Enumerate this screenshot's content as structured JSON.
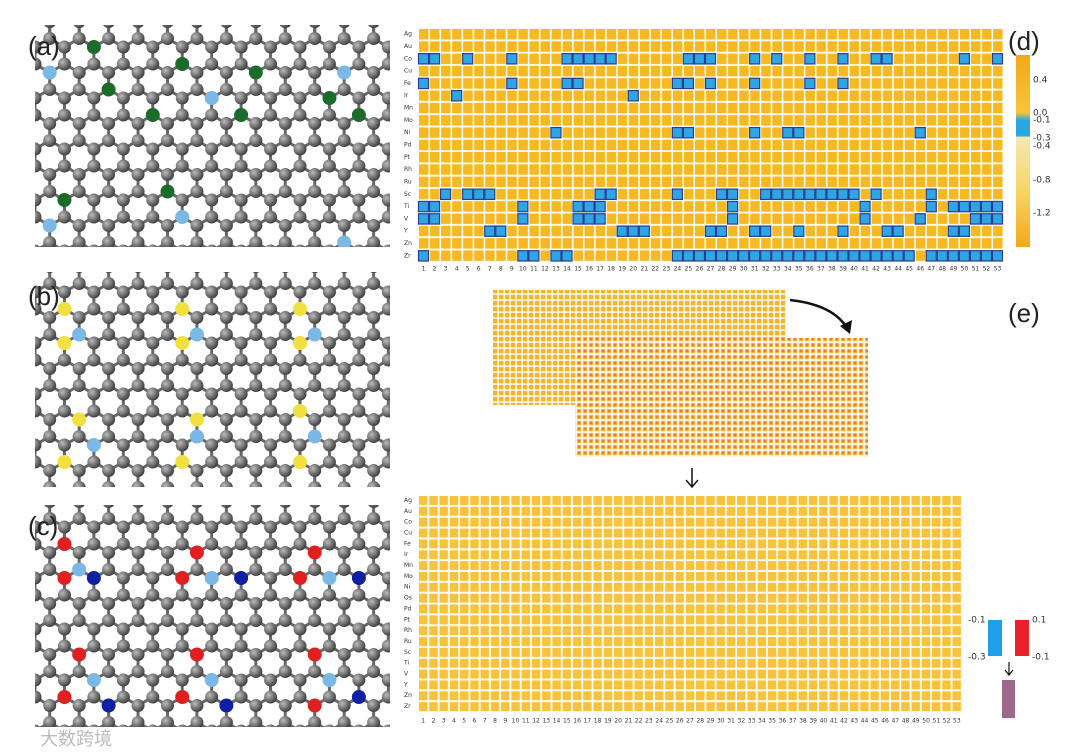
{
  "panels": {
    "a": "(a)",
    "b": "(b)",
    "c": "(c)",
    "d": "(d)",
    "e": "(e)"
  },
  "heatmap_d": {
    "rows": [
      "Ag",
      "Au",
      "Co",
      "Cu",
      "Fe",
      "Ir",
      "Mn",
      "Mo",
      "Ni",
      "Pd",
      "Pt",
      "Rh",
      "Ru",
      "Sc",
      "Ti",
      "V",
      "Y",
      "Zn",
      "Zr"
    ],
    "columns": [
      1,
      2,
      3,
      4,
      5,
      6,
      7,
      8,
      9,
      10,
      11,
      12,
      13,
      14,
      15,
      16,
      17,
      18,
      19,
      20,
      21,
      22,
      23,
      24,
      25,
      26,
      27,
      28,
      29,
      30,
      31,
      32,
      33,
      34,
      35,
      36,
      37,
      38,
      39,
      40,
      41,
      42,
      43,
      44,
      45,
      46,
      47,
      48,
      49,
      50,
      51,
      52,
      53
    ],
    "blue_cells": [
      [],
      [],
      [
        1,
        2,
        5,
        9,
        14,
        15,
        16,
        17,
        18,
        25,
        26,
        27,
        31,
        33,
        36,
        39,
        42,
        43,
        50,
        53
      ],
      [],
      [
        1,
        9,
        14,
        15,
        24,
        25,
        27,
        31,
        36,
        39
      ],
      [
        4,
        20
      ],
      [],
      [],
      [
        13,
        24,
        25,
        31,
        34,
        35,
        46
      ],
      [],
      [],
      [],
      [],
      [
        3,
        5,
        6,
        7,
        17,
        18,
        24,
        28,
        29,
        32,
        33,
        34,
        35,
        36,
        37,
        38,
        39,
        40,
        42,
        47
      ],
      [
        1,
        2,
        10,
        15,
        16,
        17,
        29,
        41,
        47,
        49,
        50,
        51,
        52,
        53
      ],
      [
        1,
        2,
        10,
        15,
        16,
        17,
        29,
        41,
        46,
        51,
        52,
        53
      ],
      [
        7,
        8,
        19,
        20,
        21,
        27,
        28,
        31,
        32,
        35,
        39,
        43,
        44,
        49,
        50
      ],
      [],
      [
        1,
        10,
        11,
        13,
        14,
        24,
        25,
        26,
        27,
        28,
        29,
        30,
        31,
        32,
        33,
        34,
        35,
        36,
        37,
        38,
        39,
        40,
        41,
        42,
        43,
        44,
        45,
        47,
        48,
        49,
        50,
        51,
        52,
        53
      ]
    ],
    "colorbar_ticks": [
      "0.4",
      "0.0",
      "-0.1",
      "-0.3",
      "-0.4",
      "-0.8",
      "-1.2"
    ]
  },
  "heatmap_e": {
    "rows": [
      "Ag",
      "Au",
      "Co",
      "Cu",
      "Fe",
      "Ir",
      "Mn",
      "Mo",
      "Ni",
      "Os",
      "Pd",
      "Pt",
      "Rh",
      "Ru",
      "Sc",
      "Ti",
      "V",
      "Y",
      "Zn",
      "Zr"
    ],
    "columns": [
      1,
      2,
      3,
      4,
      5,
      6,
      7,
      8,
      9,
      10,
      11,
      12,
      13,
      14,
      15,
      16,
      17,
      18,
      19,
      20,
      21,
      22,
      23,
      24,
      25,
      26,
      27,
      28,
      29,
      30,
      31,
      32,
      33,
      34,
      35,
      36,
      37,
      38,
      39,
      40,
      41,
      42,
      43,
      44,
      45,
      46,
      47,
      48,
      49,
      50,
      51,
      52,
      53
    ],
    "legend": {
      "blue_top": "-0.1",
      "blue_bottom": "-0.3",
      "red_top": "0.1",
      "red_bottom": "-0.1"
    }
  },
  "watermark": "大数跨境"
}
